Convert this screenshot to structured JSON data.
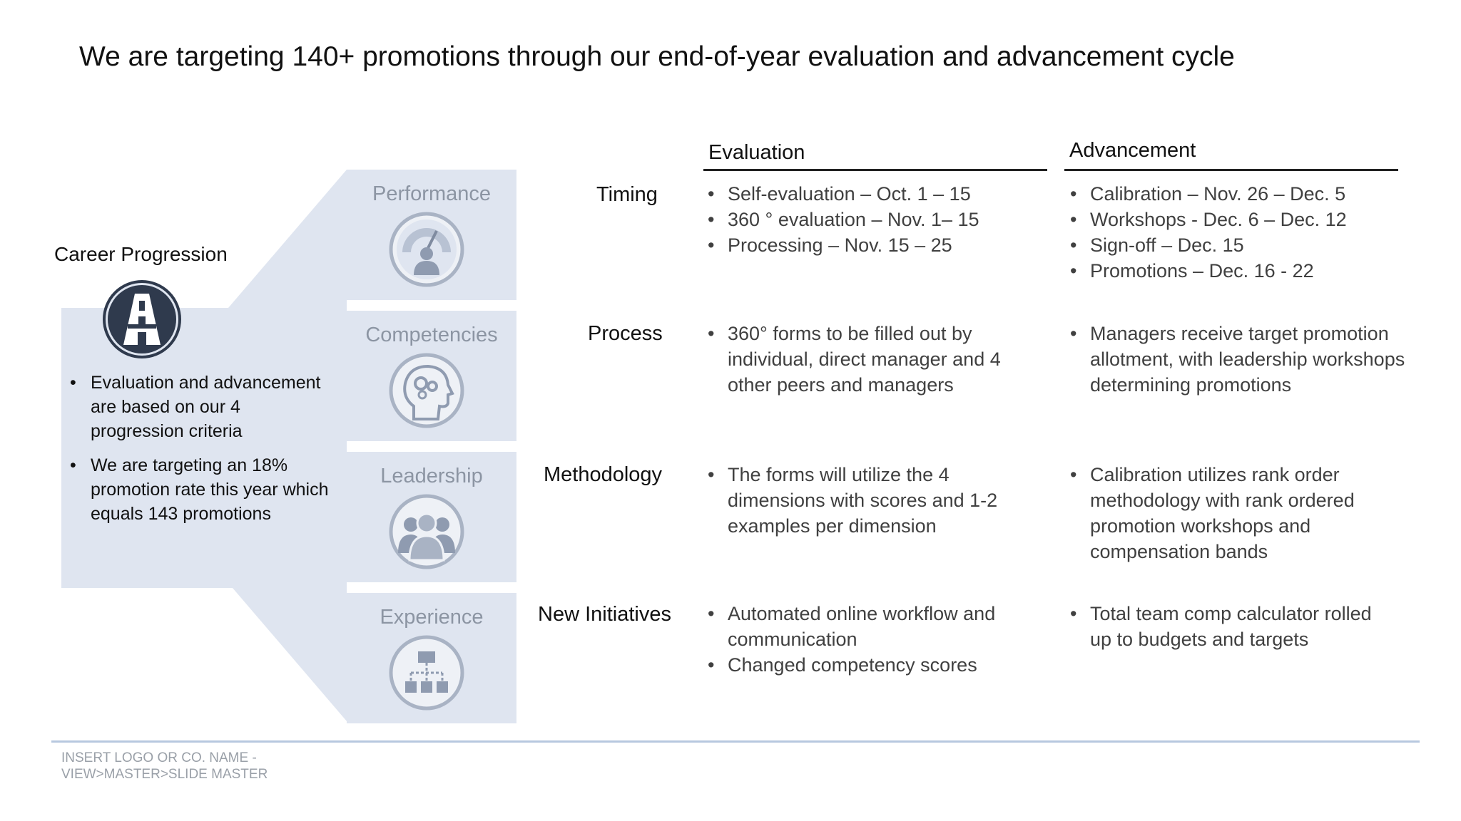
{
  "title": "We are targeting 140+ promotions through our end-of-year evaluation and advancement cycle",
  "career": {
    "title": "Career Progression",
    "icon": "road-icon",
    "bullets": [
      "Evaluation and advancement are based on our 4 progression criteria",
      "We are targeting an 18% promotion rate this year which equals 143 promotions"
    ]
  },
  "criteria": [
    {
      "label": "Performance",
      "icon": "speedometer-person-icon"
    },
    {
      "label": "Competencies",
      "icon": "head-gears-icon"
    },
    {
      "label": "Leadership",
      "icon": "group-icon"
    },
    {
      "label": "Experience",
      "icon": "org-chart-icon"
    }
  ],
  "columns": {
    "evaluation": "Evaluation",
    "advancement": "Advancement"
  },
  "rows": [
    {
      "label": "Timing",
      "evaluation": [
        "Self-evaluation – Oct. 1 – 15",
        "360 °  evaluation – Nov. 1– 15",
        "Processing – Nov. 15 – 25"
      ],
      "advancement": [
        "Calibration – Nov. 26 – Dec. 5",
        "Workshops - Dec. 6 – Dec. 12",
        "Sign-off – Dec. 15",
        "Promotions – Dec. 16 - 22"
      ]
    },
    {
      "label": "Process",
      "evaluation": [
        "360° forms to be filled out by individual, direct manager and 4 other peers and managers"
      ],
      "advancement": [
        "Managers receive target promotion allotment, with leadership workshops determining promotions"
      ]
    },
    {
      "label": "Methodology",
      "evaluation": [
        "The forms will utilize the 4 dimensions with scores and 1-2 examples per dimension"
      ],
      "advancement": [
        "Calibration utilizes rank order methodology with rank ordered promotion workshops and compensation bands"
      ]
    },
    {
      "label": "New Initiatives",
      "evaluation": [
        "Automated online workflow and communication",
        "Changed competency scores"
      ],
      "advancement": [
        "Total team comp calculator rolled up to budgets and targets"
      ]
    }
  ],
  "footer": {
    "line1": "INSERT LOGO OR CO. NAME -",
    "line2": "VIEW>MASTER>SLIDE MASTER"
  },
  "colors": {
    "panel": "#dfe5f0",
    "icon_ring": "#a9b3c4",
    "icon_fill": "#8f9bb0",
    "career_icon": "#2f3a4d",
    "footer_rule": "#b7c8df"
  }
}
